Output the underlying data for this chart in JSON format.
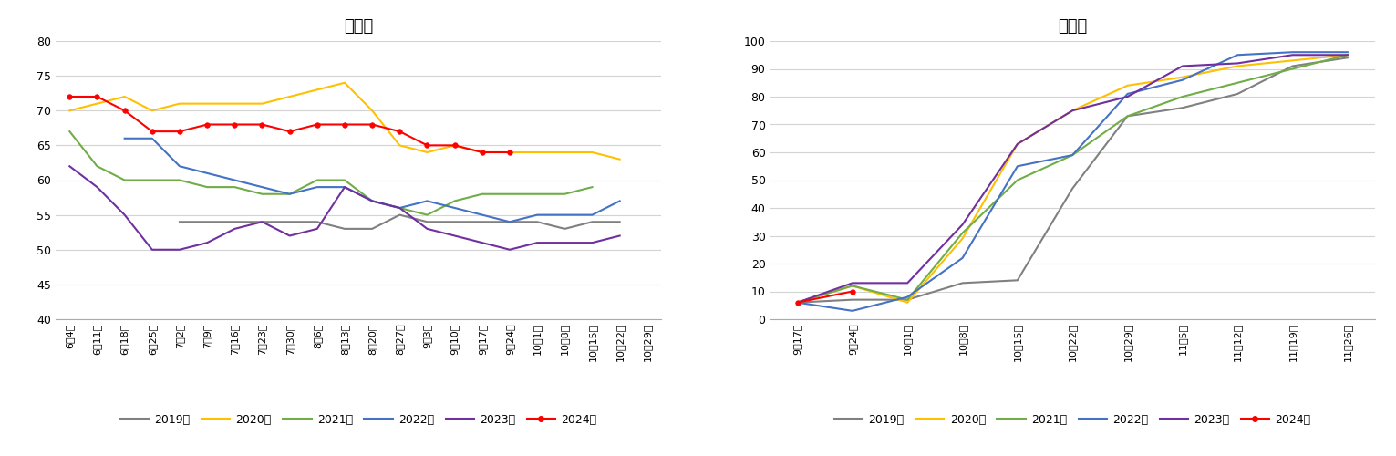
{
  "chart1": {
    "title": "优良率",
    "xlabels": [
      "6月4日",
      "6月11日",
      "6月18日",
      "6月25日",
      "7月2日",
      "7月9日",
      "7月16日",
      "7月23日",
      "7月30日",
      "8月6日",
      "8月13日",
      "8月20日",
      "8月27日",
      "9月3日",
      "9月10日",
      "9月17日",
      "9月24日",
      "10月1日",
      "10月8日",
      "10月15日",
      "10月22日",
      "10月29日"
    ],
    "ylim": [
      40,
      80
    ],
    "yticks": [
      40,
      45,
      50,
      55,
      60,
      65,
      70,
      75,
      80
    ],
    "series": {
      "2019年": {
        "color": "#808080",
        "marker": null,
        "data": [
          null,
          null,
          null,
          null,
          54,
          54,
          54,
          54,
          54,
          54,
          53,
          53,
          55,
          54,
          54,
          54,
          54,
          54,
          53,
          54,
          54,
          null
        ]
      },
      "2020年": {
        "color": "#FFC000",
        "marker": null,
        "data": [
          70,
          71,
          72,
          70,
          71,
          71,
          71,
          71,
          72,
          73,
          74,
          70,
          65,
          64,
          65,
          64,
          64,
          64,
          64,
          64,
          63,
          null
        ]
      },
      "2021年": {
        "color": "#70AD47",
        "marker": null,
        "data": [
          67,
          62,
          60,
          60,
          60,
          59,
          59,
          58,
          58,
          60,
          60,
          57,
          56,
          55,
          57,
          58,
          58,
          58,
          58,
          59,
          null,
          null
        ]
      },
      "2022年": {
        "color": "#4472C4",
        "marker": null,
        "data": [
          null,
          null,
          66,
          66,
          62,
          61,
          60,
          59,
          58,
          59,
          59,
          57,
          56,
          57,
          56,
          55,
          54,
          55,
          55,
          55,
          57,
          null
        ]
      },
      "2023年": {
        "color": "#7030A0",
        "marker": null,
        "data": [
          62,
          59,
          55,
          50,
          50,
          51,
          53,
          54,
          52,
          53,
          59,
          57,
          56,
          53,
          52,
          51,
          50,
          51,
          51,
          51,
          52,
          null
        ]
      },
      "2024年": {
        "color": "#FF0000",
        "marker": "o",
        "data": [
          72,
          72,
          70,
          67,
          67,
          68,
          68,
          68,
          67,
          68,
          68,
          68,
          67,
          65,
          65,
          64,
          64,
          null,
          null,
          null,
          null,
          null
        ]
      }
    }
  },
  "chart2": {
    "title": "收割率",
    "xlabels": [
      "9月17日",
      "9月24日",
      "10月1日",
      "10月8日",
      "10月15日",
      "10月22日",
      "10月29日",
      "11月5日",
      "11月12日",
      "11月19日",
      "11月26日"
    ],
    "ylim": [
      0,
      100
    ],
    "yticks": [
      0,
      10,
      20,
      30,
      40,
      50,
      60,
      70,
      80,
      90,
      100
    ],
    "series": {
      "2019年": {
        "color": "#808080",
        "marker": null,
        "data": [
          6,
          7,
          7,
          13,
          14,
          47,
          73,
          76,
          81,
          91,
          94
        ]
      },
      "2020年": {
        "color": "#FFC000",
        "marker": null,
        "data": [
          6,
          12,
          6,
          29,
          63,
          75,
          84,
          87,
          91,
          93,
          95
        ]
      },
      "2021年": {
        "color": "#70AD47",
        "marker": null,
        "data": [
          6,
          12,
          7,
          31,
          50,
          59,
          73,
          80,
          85,
          90,
          95
        ]
      },
      "2022年": {
        "color": "#4472C4",
        "marker": null,
        "data": [
          6,
          3,
          8,
          22,
          55,
          59,
          81,
          86,
          95,
          96,
          96
        ]
      },
      "2023年": {
        "color": "#7030A0",
        "marker": null,
        "data": [
          6,
          13,
          13,
          34,
          63,
          75,
          80,
          91,
          92,
          95,
          95
        ]
      },
      "2024年": {
        "color": "#FF0000",
        "marker": "o",
        "data": [
          6,
          10,
          null,
          null,
          null,
          null,
          null,
          null,
          null,
          null,
          null
        ]
      }
    }
  },
  "legend_order": [
    "2019年",
    "2020年",
    "2021年",
    "2022年",
    "2023年",
    "2024年"
  ]
}
